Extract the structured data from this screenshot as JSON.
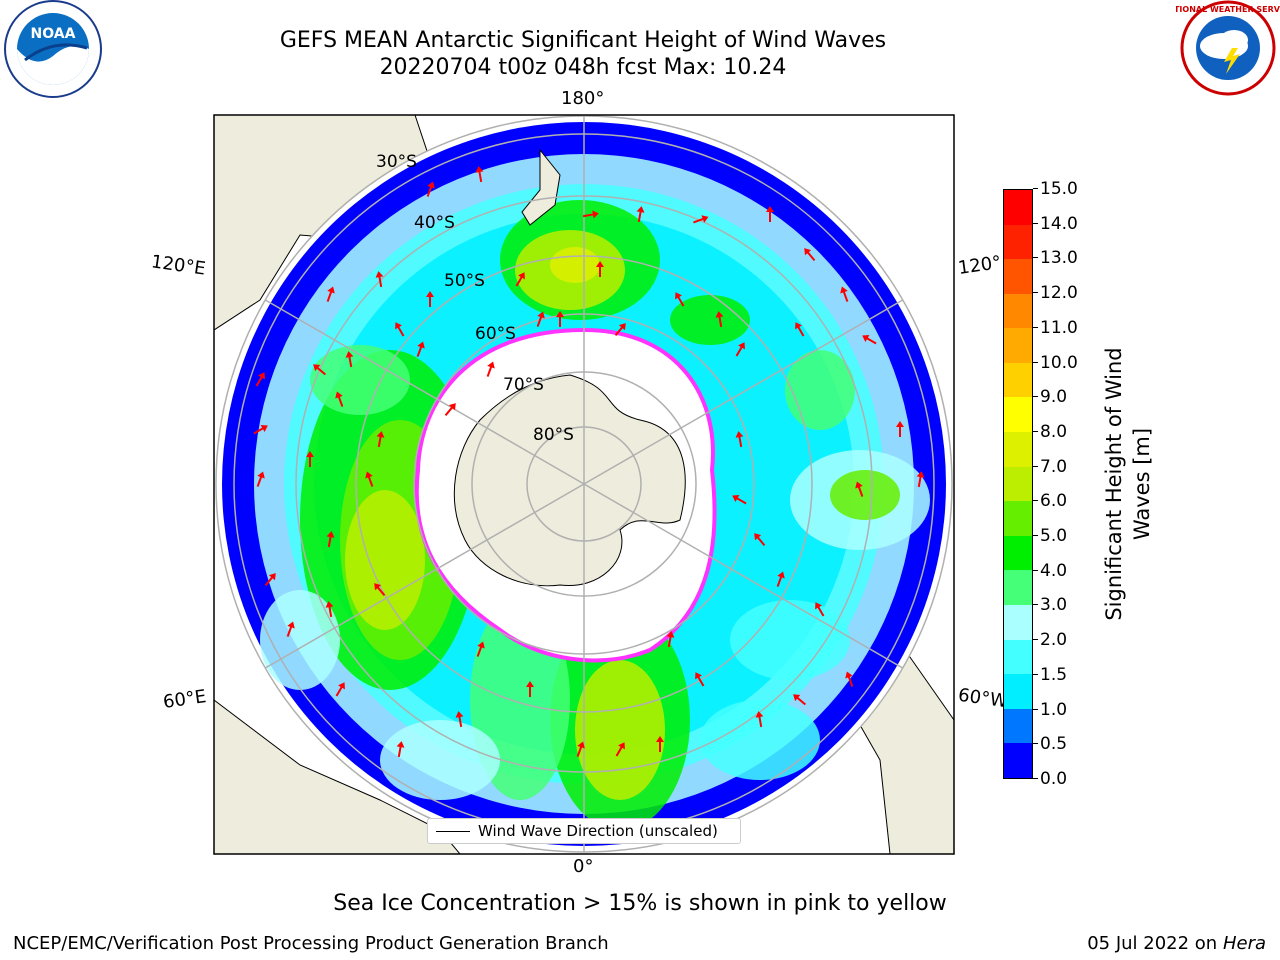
{
  "header": {
    "title_line1": "GEFS MEAN Antarctic Significant Height of Wind Waves",
    "title_line2": "20220704 t00z 048h fcst   Max: 10.24"
  },
  "map": {
    "longitude_labels": [
      "180°",
      "120°E",
      "120°",
      "60°E",
      "60°W",
      "0°"
    ],
    "latitude_labels": [
      "30°S",
      "40°S",
      "50°S",
      "60°S",
      "70°S",
      "80°S"
    ],
    "legend_label": "Wind Wave Direction (unscaled)",
    "colors": {
      "land": "#eeecdc",
      "ocean_base": "#0000ff",
      "ice_edge": "#ff33ff",
      "arrow": "#ff0000"
    }
  },
  "colorbar": {
    "label": "Significant Height of Wind Waves [m]",
    "ticks": [
      "0.0",
      "0.5",
      "1.0",
      "1.5",
      "2.0",
      "3.0",
      "4.0",
      "5.0",
      "6.0",
      "7.0",
      "8.0",
      "9.0",
      "10.0",
      "11.0",
      "12.0",
      "13.0",
      "14.0",
      "15.0"
    ],
    "colors": [
      "#0000ff",
      "#0077ff",
      "#00eeff",
      "#44ffff",
      "#aaffff",
      "#44ff77",
      "#00ee00",
      "#66ee00",
      "#bbee00",
      "#ddf000",
      "#ffff00",
      "#ffd000",
      "#ffaa00",
      "#ff8800",
      "#ff5500",
      "#ff2200",
      "#ff0000"
    ]
  },
  "logos": {
    "noaa_text": "NOAA",
    "nws_text": "NATIONAL WEATHER SERVICE"
  },
  "footer": {
    "note": "Sea Ice Concentration > 15% is shown in pink to yellow",
    "left": "NCEP/EMC/Verification Post Processing Product Generation Branch",
    "right_date": "05 Jul 2022 on ",
    "right_machine": "Hera"
  }
}
